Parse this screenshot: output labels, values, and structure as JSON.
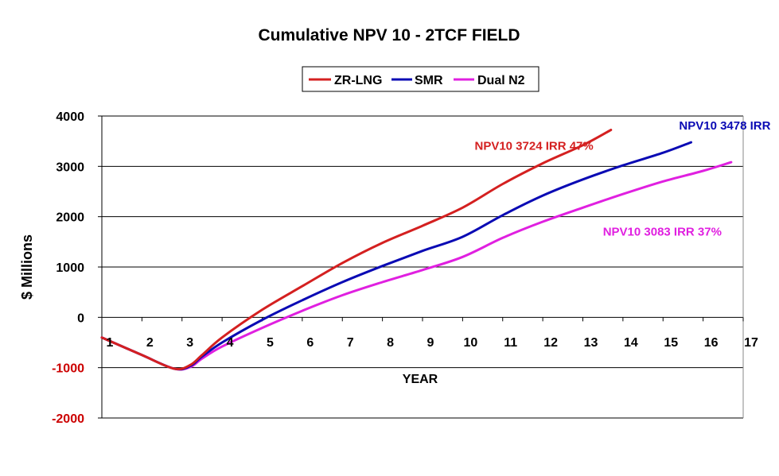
{
  "chart_data": {
    "type": "line",
    "title": "Cumulative NPV 10 - 2TCF FIELD",
    "xlabel": "YEAR",
    "ylabel": "$ Millions",
    "ylim": [
      -2000,
      4000
    ],
    "yticks": [
      {
        "label": "4000",
        "value": 4000
      },
      {
        "label": "3000",
        "value": 3000
      },
      {
        "label": "2000",
        "value": 2000
      },
      {
        "label": "1000",
        "value": 1000
      },
      {
        "label": "0",
        "value": 0
      },
      {
        "label": "-1000",
        "value": -1000
      },
      {
        "label": "-2000",
        "value": -2000
      }
    ],
    "xticks": [
      "1",
      "2",
      "3",
      "4",
      "5",
      "6",
      "7",
      "8",
      "9",
      "10",
      "11",
      "12",
      "13",
      "14",
      "15",
      "16",
      "17"
    ],
    "grid": true,
    "legend_position": "top",
    "series": [
      {
        "name": "ZR-LNG",
        "color": "#d42020",
        "x": [
          1,
          2,
          2.8,
          3.2,
          3.5,
          4,
          5,
          6,
          7,
          8,
          9,
          10,
          11,
          12,
          13,
          13.7
        ],
        "y": [
          -400,
          -750,
          -1020,
          -950,
          -750,
          -400,
          150,
          620,
          1080,
          1480,
          1820,
          2180,
          2650,
          3060,
          3420,
          3724
        ]
      },
      {
        "name": "SMR",
        "color": "#0a0ab4",
        "x": [
          1,
          2,
          2.8,
          3.2,
          3.5,
          4,
          5,
          6,
          7,
          8,
          9,
          10,
          11,
          12,
          13,
          14,
          15,
          15.7
        ],
        "y": [
          -400,
          -750,
          -1020,
          -970,
          -780,
          -500,
          -50,
          340,
          700,
          1020,
          1320,
          1600,
          2030,
          2420,
          2740,
          3020,
          3270,
          3478
        ]
      },
      {
        "name": "Dual N2",
        "color": "#e020e0",
        "x": [
          1,
          2,
          2.8,
          3.2,
          3.5,
          4,
          5,
          6,
          7,
          8,
          9,
          10,
          11,
          12,
          13,
          14,
          15,
          16,
          16.7
        ],
        "y": [
          -400,
          -750,
          -1020,
          -990,
          -820,
          -580,
          -210,
          130,
          440,
          700,
          940,
          1200,
          1580,
          1900,
          2180,
          2450,
          2700,
          2910,
          3083
        ]
      }
    ],
    "annotations": [
      {
        "text": "NPV10  3724 IRR 47%",
        "color": "#d42020",
        "x": 10.3,
        "y": 3330
      },
      {
        "text": "NPV10  3478 IRR",
        "color": "#0a0ab4",
        "x": 15.4,
        "y": 3730
      },
      {
        "text": "NPV10   3083 IRR 37%",
        "color": "#e020e0",
        "x": 13.5,
        "y": 1620
      }
    ],
    "colors": {
      "tick_negative": "#cc0000",
      "tick_positive": "#000000",
      "axis": "#000000",
      "gridline": "#000000"
    }
  }
}
